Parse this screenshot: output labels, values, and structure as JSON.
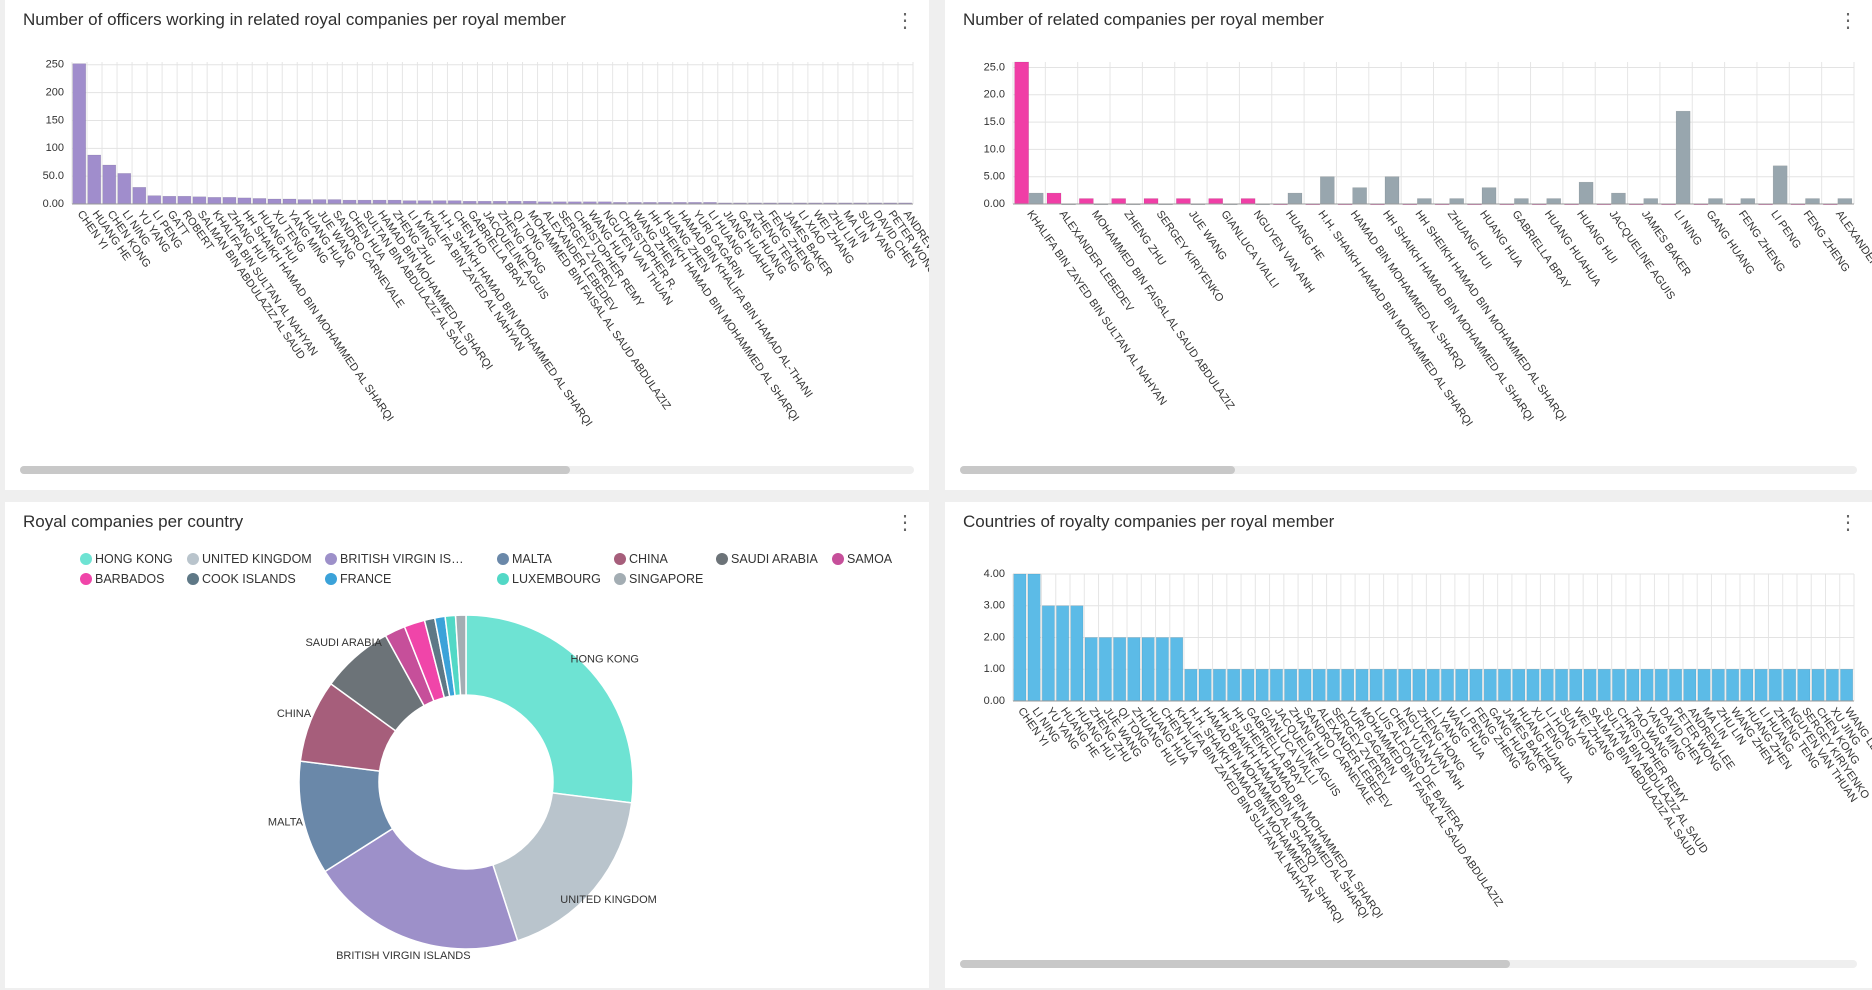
{
  "chart_data": [
    {
      "type": "bar",
      "title": "Number of officers working in related royal companies per royal member",
      "categories": [
        "CHEN YI",
        "HUANG HE",
        "CHEN KONG",
        "LI NING",
        "YU YANG",
        "LI PENG",
        "GATT",
        "ROBERT",
        "SALMAN BIN ABDULAZIZ AL SAUD",
        "KHALIFA BIN SULTAN AL NAHYAN",
        "ZHANG HUI",
        "HH SHAIKH HAMAD BIN MOHAMMED AL SHARQI",
        "HUANG HUI",
        "XU TENG",
        "YANG MING",
        "HUANG HUA",
        "JUE WANG",
        "SANDRO CARNEVALE",
        "CHEN HUA",
        "SULTAN BIN ABDULAZIZ AL SAUD",
        "HAMAD BIN MOHAMMED AL SHARQI",
        "ZHENG ZHU",
        "LI MING",
        "KHALIFA BIN ZAYED AL NAHYAN",
        "H.H. SHAIKH HAMAD BIN MOHAMMED AL SHARQI",
        "CHEN HO",
        "GABRIELLA BRAY",
        "JACQUELINE AGUIS",
        "ZHENG HONG",
        "QI TONG",
        "MOHAMMED BIN FAISAL AL SAUD ABDULAZIZ",
        "ALEXANDER LEBEDEV",
        "SERGEY ZVEREV",
        "CHRISTOPHER REMY",
        "WANG HUA",
        "NGUYEN VAN THUAN",
        "CHRISTOPHER R.",
        "WANG ZHEN",
        "HH SHEIKH HAMAD BIN MOHAMMED AL SHARQI",
        "HUANG ZHEN",
        "HAMAD BIN KHALIFA BIN HAMAD AL-THANI",
        "YURI GAGARIN",
        "LI HUANG",
        "JIANG HUAHUA",
        "GANG HUANG",
        "ZHENG TENG",
        "FENG ZHENG",
        "JAMES BAKER",
        "LI XIAO",
        "WEI ZHANG",
        "ZHU LIN",
        "MA LIN",
        "SUN YANG",
        "DAVID CHEN",
        "PETER WONG",
        "ANDREW LEE"
      ],
      "values": [
        252,
        88,
        70,
        55,
        30,
        15,
        14,
        14,
        13,
        12,
        12,
        11,
        10,
        9,
        9,
        8,
        8,
        8,
        7,
        7,
        7,
        7,
        6,
        6,
        6,
        6,
        5,
        5,
        5,
        5,
        5,
        4,
        4,
        4,
        4,
        4,
        3,
        3,
        3,
        3,
        3,
        3,
        3,
        2,
        2,
        2,
        2,
        2,
        2,
        2,
        2,
        2,
        2,
        2,
        2,
        2
      ],
      "color": "#a08dcc",
      "ylim": [
        0,
        255
      ],
      "yticks": [
        {
          "value": 0,
          "label": "0.00"
        },
        {
          "value": 50,
          "label": "50.0"
        },
        100,
        150,
        200,
        250
      ],
      "grid": true
    },
    {
      "type": "bar",
      "title": "Number of related companies per royal member",
      "categories": [
        "KHALIFA BIN ZAYED BIN SULTAN AL NAHYAN",
        "ALEXANDER LEBEDEV",
        "MOHAMMED BIN FAISAL AL SAUD ABDULAZIZ",
        "ZHENG ZHU",
        "SERGEY KIRIYENKO",
        "JUE WANG",
        "GIANLUCA VIALLI",
        "NGUYEN VAN ANH",
        "HUANG HE",
        "H.H. SHAIKH HAMAD BIN MOHAMMED AL SHARQI",
        "HAMAD BIN MOHAMMED AL SHARQI",
        "HH SHAIKH HAMAD BIN MOHAMMED AL SHARQI",
        "HH SHEIKH HAMAD BIN MOHAMMED AL SHARQI",
        "ZHUANG HUI",
        "HUANG HUA",
        "GABRIELLA BRAY",
        "HUANG HUAHUA",
        "HUANG HUI",
        "JACQUELINE AGUIS",
        "JAMES BAKER",
        "LI NING",
        "GANG HUANG",
        "FENG ZHENG",
        "LI PENG",
        "FENG ZHENG",
        "ALEXANDER"
      ],
      "series": [
        {
          "color": "#f03ea6",
          "values": [
            26,
            2,
            1,
            1,
            1,
            1,
            1,
            1,
            0,
            0,
            0,
            0,
            0,
            0,
            0,
            0,
            0,
            0,
            0,
            0,
            0,
            0,
            0,
            0,
            0,
            0
          ]
        },
        {
          "color": "#98a6ae",
          "values": [
            2,
            0,
            0,
            0,
            0,
            0,
            0,
            0,
            2,
            5,
            3,
            5,
            1,
            1,
            3,
            1,
            1,
            4,
            2,
            1,
            17,
            1,
            1,
            7,
            1,
            1
          ]
        }
      ],
      "ylim": [
        0,
        26
      ],
      "yticks": [
        {
          "value": 0,
          "label": "0.00"
        },
        {
          "value": 5,
          "label": "5.00"
        },
        {
          "value": 10,
          "label": "10.0"
        },
        {
          "value": 15,
          "label": "15.0"
        },
        {
          "value": 20,
          "label": "20.0"
        },
        {
          "value": 25,
          "label": "25.0"
        }
      ],
      "grid": true
    },
    {
      "type": "pie",
      "title": "Royal companies per country",
      "categories": [
        "HONG KONG",
        "UNITED KINGDOM",
        "BRITISH VIRGIN ISLANDS",
        "MALTA",
        "CHINA",
        "SAUDI ARABIA",
        "SAMOA",
        "BARBADOS",
        "COOK ISLANDS",
        "FRANCE",
        "LUXEMBOURG",
        "SINGAPORE"
      ],
      "values": [
        27,
        18,
        21,
        11,
        8,
        7,
        2,
        2,
        1,
        1,
        1,
        1
      ],
      "colors": [
        "#6ee3d3",
        "#b9c4cc",
        "#9d90c9",
        "#6a88a9",
        "#a65e7b",
        "#6c7378",
        "#c64f9a",
        "#f045a9",
        "#5e7886",
        "#3ba2d9",
        "#52d8c6",
        "#a3adb3"
      ],
      "donut": true
    },
    {
      "type": "bar",
      "title": "Countries of royalty companies per royal member",
      "categories": [
        "CHEN YI",
        "LI NING",
        "YU YANG",
        "HUANG HE",
        "HUANG HUI",
        "ZHENG ZHU",
        "JUE WANG",
        "QI TONG",
        "ZHUANG HUI",
        "HUANG HUA",
        "CHEN HUA",
        "KHALIFA BIN ZAYED BIN SULTAN AL NAHYAN",
        "H.H. SHAIKH HAMAD BIN MOHAMMED AL SHARQI",
        "HAMAD BIN MOHAMMED AL SHARQI",
        "HH SHAIKH HAMAD BIN MOHAMMED AL SHARQI",
        "HH SHEIKH HAMAD BIN MOHAMMED AL SHARQI",
        "GABRIELLA BRAY",
        "GIANLUCA VIALLI",
        "JACQUELINE AGUIS",
        "ZHANG HUI",
        "SANDRO CARNEVALE",
        "ALEXANDER LEBEDEV",
        "SERGEY ZVEREV",
        "YURI GAGARIN",
        "MOHAMMED BIN FAISAL AL SAUD ABDULAZIZ",
        "LUIS ALFONSO DE BAVIERA",
        "CHEN YUANYU",
        "NGUYEN VAN ANH",
        "ZHENG HONG",
        "LI YANG",
        "WANG HUA",
        "LI PENG",
        "FENG ZHENG",
        "GANG HUANG",
        "JAMES BAKER",
        "HUANG HUAHUA",
        "XU TENG",
        "LI HONG",
        "SUN YANG",
        "WEI ZHANG",
        "SALMAN BIN ABDULAZIZ AL SAUD",
        "SULTAN BIN ABDULAZIZ AL SAUD",
        "CHRISTOPHER REMY",
        "TAO WANG",
        "YANG MING",
        "DAVID CHEN",
        "PETER WONG",
        "ANDREW LEE",
        "MA LIN",
        "ZHU LIN",
        "WANG ZHEN",
        "HUANG ZHEN",
        "LI HUANG",
        "ZHENG TENG",
        "NGUYEN VAN THUAN",
        "SERGEY KIRIYENKO",
        "CHEN KONG",
        "XU JING",
        "WANG LEI"
      ],
      "values": [
        4,
        4,
        3,
        3,
        3,
        2,
        2,
        2,
        2,
        2,
        2,
        2,
        1,
        1,
        1,
        1,
        1,
        1,
        1,
        1,
        1,
        1,
        1,
        1,
        1,
        1,
        1,
        1,
        1,
        1,
        1,
        1,
        1,
        1,
        1,
        1,
        1,
        1,
        1,
        1,
        1,
        1,
        1,
        1,
        1,
        1,
        1,
        1,
        1,
        1,
        1,
        1,
        1,
        1,
        1,
        1,
        1,
        1,
        1
      ],
      "color": "#5cbbe7",
      "ylim": [
        0,
        4
      ],
      "yticks": [
        {
          "value": 0,
          "label": "0.00"
        },
        {
          "value": 1,
          "label": "1.00"
        },
        {
          "value": 2,
          "label": "2.00"
        },
        {
          "value": 3,
          "label": "3.00"
        },
        {
          "value": 4,
          "label": "4.00"
        }
      ],
      "grid": true
    }
  ]
}
